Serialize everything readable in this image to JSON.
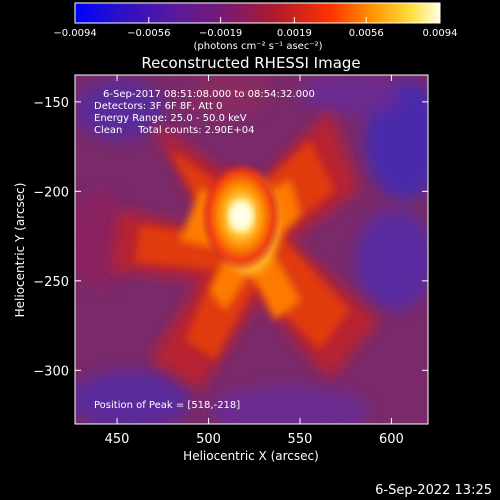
{
  "chart_data": {
    "type": "heatmap",
    "title": "Reconstructed RHESSI Image",
    "xlabel": "Heliocentric X (arcsec)",
    "ylabel": "Heliocentric Y (arcsec)",
    "xlim": [
      427,
      620
    ],
    "ylim": [
      -330,
      -135
    ],
    "x_ticks": [
      450,
      500,
      550,
      600
    ],
    "y_ticks": [
      -150,
      -200,
      -250,
      -300
    ],
    "colormap": "hot-to-purple-blue",
    "colorbar": {
      "range": [
        -0.0094,
        0.0094
      ],
      "tick_values": [
        -0.0094,
        -0.0056,
        -0.0019,
        0.0019,
        0.0056,
        0.0094
      ],
      "tick_labels": [
        "-0.0094",
        "-0.0056",
        "-0.0019",
        "0.0019",
        "0.0056",
        "0.0094"
      ],
      "unit_label": "(photons cm⁻² s⁻¹ asec⁻²)"
    },
    "annotations": {
      "time_range": "6-Sep-2017 08:51:08.000 to 08:54:32.000",
      "detectors": "Detectors: 3F 6F 8F, Att 0",
      "energy_range": "Energy Range: 25.0 - 50.0 keV",
      "clean_counts": "Clean     Total counts: 2.90E+04",
      "peak_position": "Position of Peak = [518,-218]"
    },
    "peak": {
      "x": 518,
      "y": -218
    }
  },
  "footer": {
    "timestamp": "6-Sep-2022 13:25"
  }
}
